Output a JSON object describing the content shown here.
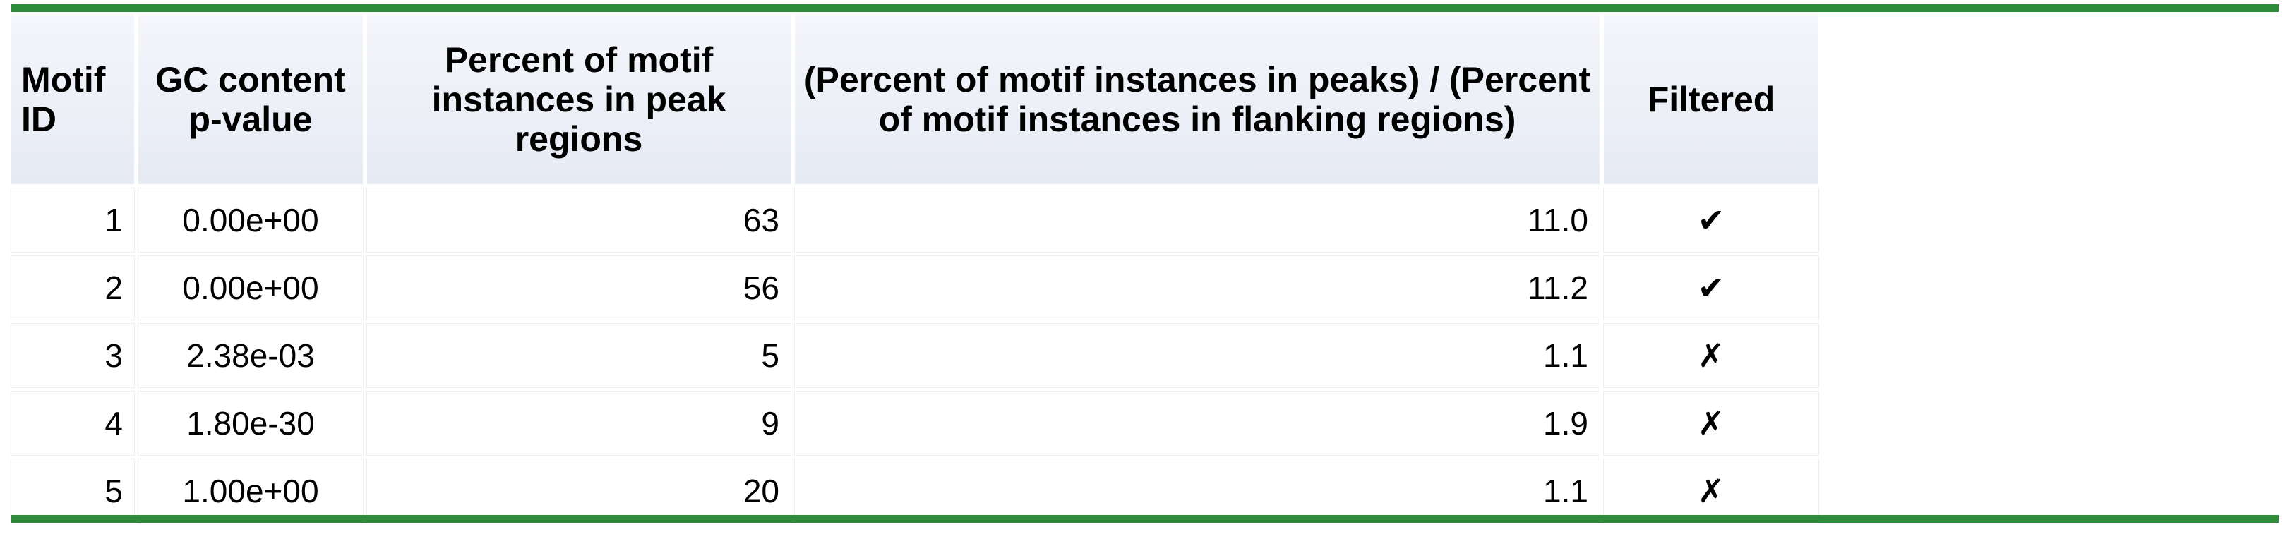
{
  "table": {
    "headers": [
      "Motif ID",
      "GC content p-value",
      "Percent of motif instances in peak regions",
      "(Percent of motif instances in peaks) / (Percent of motif instances in flanking regions)",
      "Filtered"
    ],
    "rows": [
      {
        "motif_id": "1",
        "gc_pvalue": "0.00e+00",
        "pct_peak": "63",
        "ratio": "11.0",
        "filtered": "✔"
      },
      {
        "motif_id": "2",
        "gc_pvalue": "0.00e+00",
        "pct_peak": "56",
        "ratio": "11.2",
        "filtered": "✔"
      },
      {
        "motif_id": "3",
        "gc_pvalue": "2.38e-03",
        "pct_peak": "5",
        "ratio": "1.1",
        "filtered": "✗"
      },
      {
        "motif_id": "4",
        "gc_pvalue": "1.80e-30",
        "pct_peak": "9",
        "ratio": "1.9",
        "filtered": "✗"
      },
      {
        "motif_id": "5",
        "gc_pvalue": "1.00e+00",
        "pct_peak": "20",
        "ratio": "1.1",
        "filtered": "✗"
      }
    ]
  },
  "colors": {
    "rule": "#2e8b3a",
    "header_bg": "#e6eaf3"
  }
}
